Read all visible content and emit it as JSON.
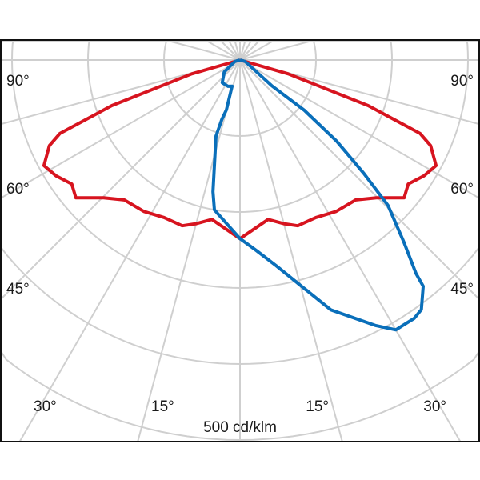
{
  "chart_data": {
    "type": "polar",
    "title": "",
    "radial_unit_label": "500 cd/klm",
    "radial_ring_step": 100,
    "radial_range": [
      0,
      700
    ],
    "angle_step_deg": 15,
    "angle_zero": "nadir (down)",
    "grid": true,
    "colors": {
      "grid": "#cfcfcf",
      "frame": "#111111"
    },
    "angle_labels": {
      "left": [
        "90°",
        "60°",
        "45°",
        "30°",
        "15°"
      ],
      "right": [
        "90°",
        "60°",
        "45°",
        "30°",
        "15°"
      ]
    },
    "series": [
      {
        "color": "#d7141f",
        "symmetric": true,
        "points": [
          [
            -90,
            0
          ],
          [
            -74,
            66
          ],
          [
            -70.4,
            179
          ],
          [
            -67.8,
            256
          ],
          [
            -65.8,
            275
          ],
          [
            -61.7,
            293
          ],
          [
            -57.8,
            286
          ],
          [
            -53.6,
            275
          ],
          [
            -50,
            282
          ],
          [
            -44.7,
            255
          ],
          [
            -39.6,
            239
          ],
          [
            -32.4,
            236
          ],
          [
            -25.7,
            230
          ],
          [
            -19.2,
            231
          ],
          [
            -15,
            223
          ],
          [
            -10,
            213
          ],
          [
            0,
            235
          ],
          [
            10,
            213
          ],
          [
            15,
            223
          ],
          [
            19.2,
            231
          ],
          [
            25.7,
            230
          ],
          [
            32.4,
            236
          ],
          [
            39.6,
            239
          ],
          [
            44.7,
            255
          ],
          [
            50,
            282
          ],
          [
            53.6,
            275
          ],
          [
            57.8,
            286
          ],
          [
            61.7,
            293
          ],
          [
            65.8,
            275
          ],
          [
            67.8,
            256
          ],
          [
            70.4,
            179
          ],
          [
            74,
            66
          ],
          [
            90,
            0
          ]
        ]
      },
      {
        "color": "#0a6fba",
        "symmetric": false,
        "points": [
          [
            90,
            0
          ],
          [
            74,
            7
          ],
          [
            51,
            54
          ],
          [
            52,
            107
          ],
          [
            50,
            166
          ],
          [
            47.5,
            221
          ],
          [
            45.5,
            273
          ],
          [
            42,
            322
          ],
          [
            39.5,
            364
          ],
          [
            39,
            383
          ],
          [
            36,
            406
          ],
          [
            34,
            410
          ],
          [
            30,
            410
          ],
          [
            27,
            392
          ],
          [
            23.5,
            369
          ],
          [
            20,
            350
          ],
          [
            15,
            307
          ],
          [
            10,
            275
          ],
          [
            5,
            252
          ],
          [
            0,
            235
          ],
          [
            -9.7,
            200
          ],
          [
            -11.6,
            177
          ],
          [
            -17.5,
            105
          ],
          [
            -17,
            82
          ],
          [
            -15.3,
            68
          ],
          [
            -16.9,
            36
          ],
          [
            -24.4,
            38
          ],
          [
            -38,
            38
          ],
          [
            -53,
            26
          ],
          [
            -74,
            7
          ],
          [
            -90,
            0
          ]
        ]
      }
    ]
  }
}
